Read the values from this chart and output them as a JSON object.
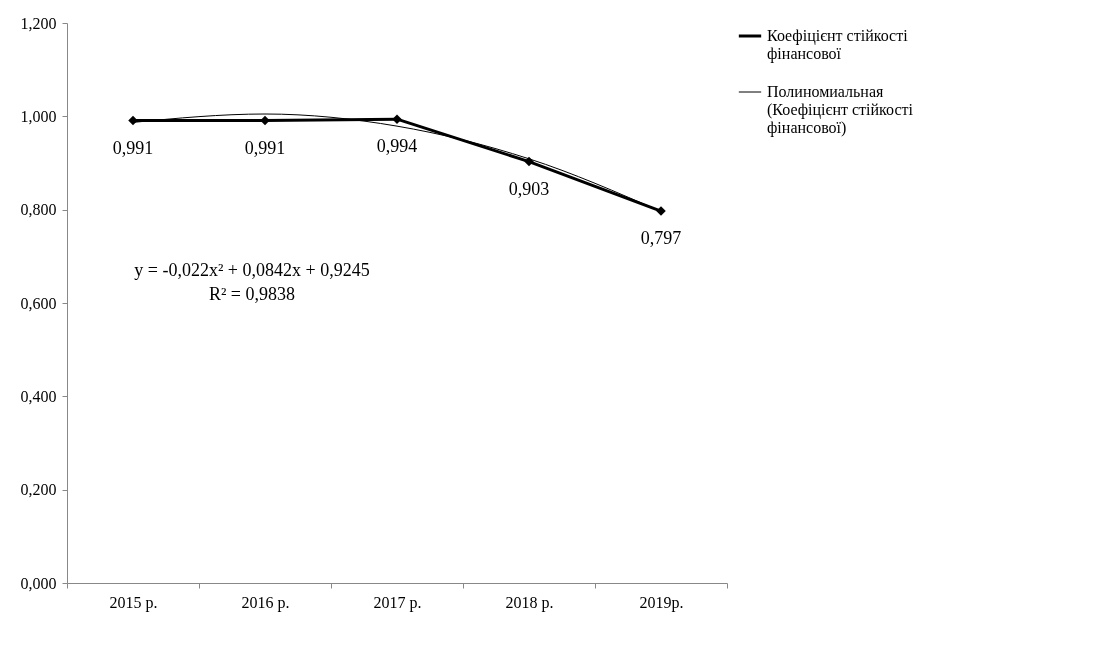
{
  "chart_data": {
    "type": "line",
    "categories": [
      "2015 р.",
      "2016 р.",
      "2017 р.",
      "2018 р.",
      "2019р."
    ],
    "series": [
      {
        "name": "Коефіцієнт стійкості фінансової",
        "color": "#000000",
        "values": [
          0.991,
          0.991,
          0.994,
          0.903,
          0.797
        ],
        "value_labels": [
          "0,991",
          "0,991",
          "0,994",
          "0,903",
          "0,797"
        ],
        "marker": "diamond"
      },
      {
        "name": "Полиномиальная (Коефіцієнт стійкості фінансової)",
        "type": "line",
        "color": "#000000",
        "x": [
          "2015 р.",
          "2016 р.",
          "2017 р.",
          "2018 р.",
          "2019р."
        ],
        "values": [
          0.987,
          1.005,
          0.979,
          0.909,
          0.796
        ],
        "marker": "none"
      }
    ],
    "ylim": [
      0,
      1.2
    ],
    "yticks": [
      {
        "value": 0,
        "label": "0,000"
      },
      {
        "value": 0.2,
        "label": "0,200"
      },
      {
        "value": 0.4,
        "label": "0,400"
      },
      {
        "value": 0.6,
        "label": "0,600"
      },
      {
        "value": 0.8,
        "label": "0,800"
      },
      {
        "value": 1.0,
        "label": "1,000"
      },
      {
        "value": 1.2,
        "label": "1,200"
      }
    ],
    "grid": false,
    "legend": "right",
    "annotations": [
      "y = -0,022x² + 0,0842x + 0,9245",
      "R² = 0,9838"
    ]
  }
}
